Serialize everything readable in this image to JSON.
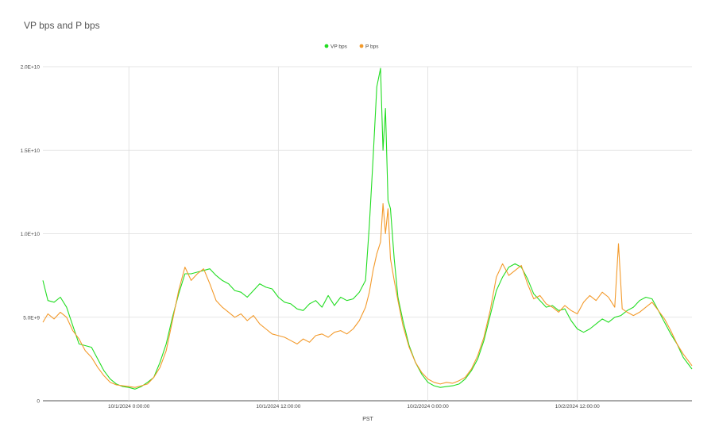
{
  "chart_data": {
    "type": "line",
    "title": "VP bps and P bps",
    "xlabel": "PST",
    "ylabel": "",
    "x_tick_labels": [
      "10/1/2024 0:00:00",
      "10/1/2024 12:00:00",
      "10/2/2024 0:00:00",
      "10/2/2024 12:00:00"
    ],
    "x_range_hours": [
      -6.9,
      45.2
    ],
    "x_tick_hours": [
      0,
      12,
      24,
      36
    ],
    "y_tick_values": [
      0,
      5000000000,
      10000000000,
      15000000000,
      20000000000
    ],
    "y_tick_labels": [
      "0",
      "5.0E+9",
      "1.0E+10",
      "1.5E+10",
      "2.0E+10"
    ],
    "ylim": [
      0,
      20000000000
    ],
    "grid": true,
    "legend_position": "top",
    "series": [
      {
        "name": "VP bps",
        "color": "#22dd22",
        "points": [
          [
            -6.9,
            7200000000.0
          ],
          [
            -6.5,
            6000000000.0
          ],
          [
            -6.0,
            5900000000.0
          ],
          [
            -5.5,
            6200000000.0
          ],
          [
            -5.0,
            5600000000.0
          ],
          [
            -4.5,
            4500000000.0
          ],
          [
            -4.0,
            3400000000.0
          ],
          [
            -3.5,
            3300000000.0
          ],
          [
            -3.0,
            3200000000.0
          ],
          [
            -2.5,
            2500000000.0
          ],
          [
            -2.0,
            1800000000.0
          ],
          [
            -1.5,
            1300000000.0
          ],
          [
            -1.0,
            1000000000.0
          ],
          [
            -0.5,
            850000000.0
          ],
          [
            0.0,
            800000000.0
          ],
          [
            0.5,
            700000000.0
          ],
          [
            1.0,
            850000000.0
          ],
          [
            1.5,
            1100000000.0
          ],
          [
            2.0,
            1400000000.0
          ],
          [
            2.5,
            2300000000.0
          ],
          [
            3.0,
            3400000000.0
          ],
          [
            3.5,
            5000000000.0
          ],
          [
            4.0,
            6400000000.0
          ],
          [
            4.5,
            7600000000.0
          ],
          [
            5.0,
            7600000000.0
          ],
          [
            5.5,
            7700000000.0
          ],
          [
            6.0,
            7800000000.0
          ],
          [
            6.5,
            7900000000.0
          ],
          [
            7.0,
            7500000000.0
          ],
          [
            7.5,
            7200000000.0
          ],
          [
            8.0,
            7000000000.0
          ],
          [
            8.5,
            6600000000.0
          ],
          [
            9.0,
            6500000000.0
          ],
          [
            9.5,
            6200000000.0
          ],
          [
            10.0,
            6600000000.0
          ],
          [
            10.5,
            7000000000.0
          ],
          [
            11.0,
            6800000000.0
          ],
          [
            11.5,
            6700000000.0
          ],
          [
            12.0,
            6200000000.0
          ],
          [
            12.5,
            5900000000.0
          ],
          [
            13.0,
            5800000000.0
          ],
          [
            13.5,
            5500000000.0
          ],
          [
            14.0,
            5400000000.0
          ],
          [
            14.5,
            5800000000.0
          ],
          [
            15.0,
            6000000000.0
          ],
          [
            15.5,
            5600000000.0
          ],
          [
            16.0,
            6300000000.0
          ],
          [
            16.5,
            5700000000.0
          ],
          [
            17.0,
            6200000000.0
          ],
          [
            17.5,
            6000000000.0
          ],
          [
            18.0,
            6100000000.0
          ],
          [
            18.5,
            6500000000.0
          ],
          [
            19.0,
            7200000000.0
          ],
          [
            19.3,
            10500000000.0
          ],
          [
            19.6,
            14500000000.0
          ],
          [
            19.9,
            18800000000.0
          ],
          [
            20.2,
            19900000000.0
          ],
          [
            20.4,
            15000000000.0
          ],
          [
            20.6,
            17500000000.0
          ],
          [
            20.8,
            12000000000.0
          ],
          [
            21.0,
            11500000000.0
          ],
          [
            21.3,
            8500000000.0
          ],
          [
            21.6,
            6200000000.0
          ],
          [
            22.0,
            4800000000.0
          ],
          [
            22.5,
            3300000000.0
          ],
          [
            23.0,
            2300000000.0
          ],
          [
            23.5,
            1600000000.0
          ],
          [
            24.0,
            1100000000.0
          ],
          [
            24.5,
            900000000.0
          ],
          [
            25.0,
            800000000.0
          ],
          [
            25.5,
            850000000.0
          ],
          [
            26.0,
            900000000.0
          ],
          [
            26.5,
            1000000000.0
          ],
          [
            27.0,
            1300000000.0
          ],
          [
            27.5,
            1800000000.0
          ],
          [
            28.0,
            2500000000.0
          ],
          [
            28.5,
            3600000000.0
          ],
          [
            29.0,
            5100000000.0
          ],
          [
            29.5,
            6600000000.0
          ],
          [
            30.0,
            7400000000.0
          ],
          [
            30.5,
            8000000000.0
          ],
          [
            31.0,
            8200000000.0
          ],
          [
            31.5,
            8000000000.0
          ],
          [
            32.0,
            7300000000.0
          ],
          [
            32.5,
            6400000000.0
          ],
          [
            33.0,
            6000000000.0
          ],
          [
            33.5,
            5600000000.0
          ],
          [
            34.0,
            5700000000.0
          ],
          [
            34.5,
            5400000000.0
          ],
          [
            35.0,
            5500000000.0
          ],
          [
            35.5,
            4800000000.0
          ],
          [
            36.0,
            4300000000.0
          ],
          [
            36.5,
            4100000000.0
          ],
          [
            37.0,
            4300000000.0
          ],
          [
            37.5,
            4600000000.0
          ],
          [
            38.0,
            4900000000.0
          ],
          [
            38.5,
            4700000000.0
          ],
          [
            39.0,
            5000000000.0
          ],
          [
            39.5,
            5100000000.0
          ],
          [
            40.0,
            5400000000.0
          ],
          [
            40.5,
            5600000000.0
          ],
          [
            41.0,
            6000000000.0
          ],
          [
            41.5,
            6200000000.0
          ],
          [
            42.0,
            6100000000.0
          ],
          [
            42.5,
            5400000000.0
          ],
          [
            43.0,
            4700000000.0
          ],
          [
            43.5,
            4000000000.0
          ],
          [
            44.0,
            3400000000.0
          ],
          [
            44.5,
            2600000000.0
          ],
          [
            45.2,
            1900000000.0
          ]
        ]
      },
      {
        "name": "P bps",
        "color": "#f39a2b",
        "points": [
          [
            -6.9,
            4700000000.0
          ],
          [
            -6.5,
            5200000000.0
          ],
          [
            -6.0,
            4900000000.0
          ],
          [
            -5.5,
            5300000000.0
          ],
          [
            -5.0,
            5000000000.0
          ],
          [
            -4.5,
            4200000000.0
          ],
          [
            -4.0,
            3700000000.0
          ],
          [
            -3.5,
            3000000000.0
          ],
          [
            -3.0,
            2600000000.0
          ],
          [
            -2.5,
            2000000000.0
          ],
          [
            -2.0,
            1500000000.0
          ],
          [
            -1.5,
            1100000000.0
          ],
          [
            -1.0,
            950000000.0
          ],
          [
            -0.5,
            900000000.0
          ],
          [
            0.0,
            850000000.0
          ],
          [
            0.5,
            800000000.0
          ],
          [
            1.0,
            900000000.0
          ],
          [
            1.5,
            1000000000.0
          ],
          [
            2.0,
            1400000000.0
          ],
          [
            2.5,
            2000000000.0
          ],
          [
            3.0,
            3000000000.0
          ],
          [
            3.5,
            4800000000.0
          ],
          [
            4.0,
            6600000000.0
          ],
          [
            4.5,
            8000000000.0
          ],
          [
            5.0,
            7200000000.0
          ],
          [
            5.5,
            7600000000.0
          ],
          [
            6.0,
            7900000000.0
          ],
          [
            6.5,
            7000000000.0
          ],
          [
            7.0,
            6000000000.0
          ],
          [
            7.5,
            5600000000.0
          ],
          [
            8.0,
            5300000000.0
          ],
          [
            8.5,
            5000000000.0
          ],
          [
            9.0,
            5200000000.0
          ],
          [
            9.5,
            4800000000.0
          ],
          [
            10.0,
            5100000000.0
          ],
          [
            10.5,
            4600000000.0
          ],
          [
            11.0,
            4300000000.0
          ],
          [
            11.5,
            4000000000.0
          ],
          [
            12.0,
            3900000000.0
          ],
          [
            12.5,
            3800000000.0
          ],
          [
            13.0,
            3600000000.0
          ],
          [
            13.5,
            3400000000.0
          ],
          [
            14.0,
            3700000000.0
          ],
          [
            14.5,
            3500000000.0
          ],
          [
            15.0,
            3900000000.0
          ],
          [
            15.5,
            4000000000.0
          ],
          [
            16.0,
            3800000000.0
          ],
          [
            16.5,
            4100000000.0
          ],
          [
            17.0,
            4200000000.0
          ],
          [
            17.5,
            4000000000.0
          ],
          [
            18.0,
            4300000000.0
          ],
          [
            18.5,
            4800000000.0
          ],
          [
            19.0,
            5600000000.0
          ],
          [
            19.3,
            6500000000.0
          ],
          [
            19.6,
            7800000000.0
          ],
          [
            19.9,
            8800000000.0
          ],
          [
            20.2,
            9500000000.0
          ],
          [
            20.4,
            11800000000.0
          ],
          [
            20.6,
            10000000000.0
          ],
          [
            20.8,
            11500000000.0
          ],
          [
            21.0,
            8500000000.0
          ],
          [
            21.3,
            7200000000.0
          ],
          [
            21.6,
            6000000000.0
          ],
          [
            22.0,
            4500000000.0
          ],
          [
            22.5,
            3200000000.0
          ],
          [
            23.0,
            2300000000.0
          ],
          [
            23.5,
            1700000000.0
          ],
          [
            24.0,
            1300000000.0
          ],
          [
            24.5,
            1100000000.0
          ],
          [
            25.0,
            1000000000.0
          ],
          [
            25.5,
            1100000000.0
          ],
          [
            26.0,
            1050000000.0
          ],
          [
            26.5,
            1200000000.0
          ],
          [
            27.0,
            1400000000.0
          ],
          [
            27.5,
            1900000000.0
          ],
          [
            28.0,
            2700000000.0
          ],
          [
            28.5,
            3800000000.0
          ],
          [
            29.0,
            5400000000.0
          ],
          [
            29.5,
            7400000000.0
          ],
          [
            30.0,
            8200000000.0
          ],
          [
            30.5,
            7500000000.0
          ],
          [
            31.0,
            7800000000.0
          ],
          [
            31.5,
            8100000000.0
          ],
          [
            32.0,
            7000000000.0
          ],
          [
            32.5,
            6100000000.0
          ],
          [
            33.0,
            6300000000.0
          ],
          [
            33.5,
            5800000000.0
          ],
          [
            34.0,
            5600000000.0
          ],
          [
            34.5,
            5300000000.0
          ],
          [
            35.0,
            5700000000.0
          ],
          [
            35.5,
            5400000000.0
          ],
          [
            36.0,
            5200000000.0
          ],
          [
            36.5,
            5900000000.0
          ],
          [
            37.0,
            6300000000.0
          ],
          [
            37.5,
            6000000000.0
          ],
          [
            38.0,
            6500000000.0
          ],
          [
            38.5,
            6200000000.0
          ],
          [
            39.0,
            5600000000.0
          ],
          [
            39.3,
            9400000000.0
          ],
          [
            39.6,
            5500000000.0
          ],
          [
            40.0,
            5300000000.0
          ],
          [
            40.5,
            5100000000.0
          ],
          [
            41.0,
            5300000000.0
          ],
          [
            41.5,
            5600000000.0
          ],
          [
            42.0,
            5900000000.0
          ],
          [
            42.5,
            5400000000.0
          ],
          [
            43.0,
            4900000000.0
          ],
          [
            43.5,
            4200000000.0
          ],
          [
            44.0,
            3400000000.0
          ],
          [
            44.5,
            2800000000.0
          ],
          [
            45.2,
            2100000000.0
          ]
        ]
      }
    ]
  }
}
